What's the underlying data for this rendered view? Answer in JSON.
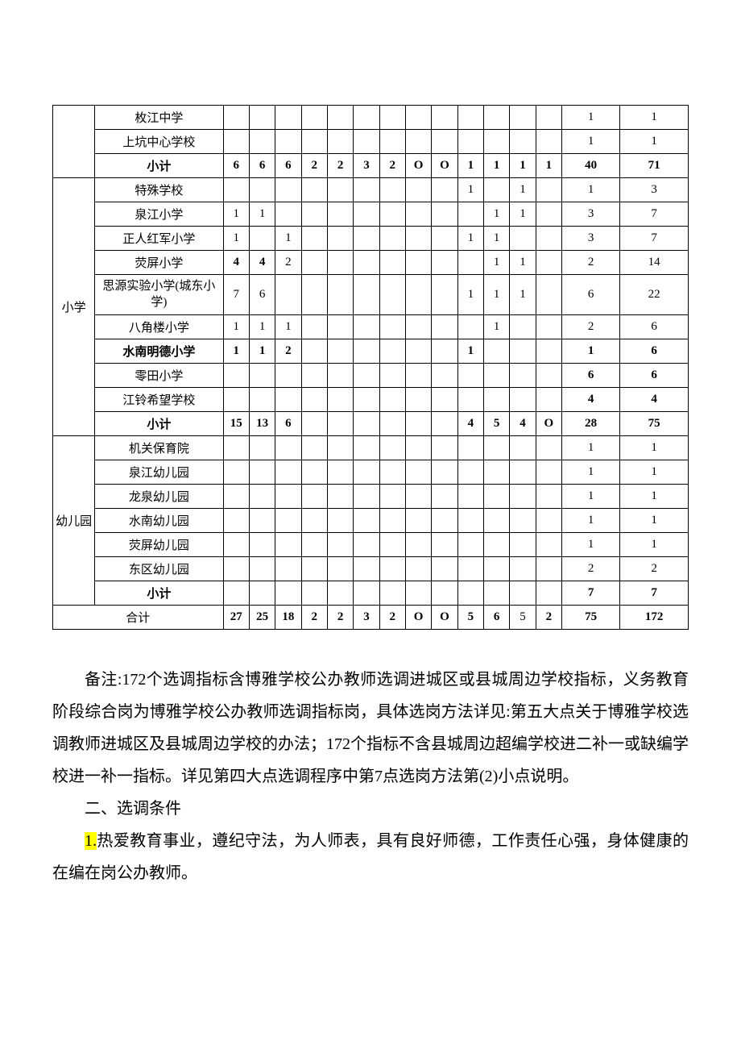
{
  "colors": {
    "background": "#ffffff",
    "text": "#000000",
    "border": "#000000",
    "highlight": "#ffff00"
  },
  "typography": {
    "table_fontsize": 15,
    "body_fontsize": 20,
    "font_family": "SimSun"
  },
  "table": {
    "type": "table",
    "column_widths": {
      "category": 42,
      "school": 128,
      "num": 26,
      "total1": 58,
      "total2": 68
    },
    "top_group": {
      "rows": [
        {
          "school": "枚江中学",
          "c": [
            "",
            "",
            "",
            "",
            "",
            "",
            "",
            "",
            "",
            "",
            "",
            "",
            "",
            "1",
            "1"
          ],
          "bold": false
        },
        {
          "school": "上坑中心学校",
          "c": [
            "",
            "",
            "",
            "",
            "",
            "",
            "",
            "",
            "",
            "",
            "",
            "",
            "",
            "1",
            "1"
          ],
          "bold": false
        },
        {
          "school": "小计",
          "c": [
            "6",
            "6",
            "6",
            "2",
            "2",
            "3",
            "2",
            "O",
            "O",
            "1",
            "1",
            "1",
            "1",
            "40",
            "71"
          ],
          "bold": true
        }
      ]
    },
    "primary": {
      "label": "小学",
      "rows": [
        {
          "school": "特殊学校",
          "c": [
            "",
            "",
            "",
            "",
            "",
            "",
            "",
            "",
            "",
            "1",
            "",
            "1",
            "",
            "1",
            "3"
          ],
          "bold": false
        },
        {
          "school": "泉江小学",
          "c": [
            "1",
            "1",
            "",
            "",
            "",
            "",
            "",
            "",
            "",
            "",
            "1",
            "1",
            "",
            "3",
            "7"
          ],
          "bold": false
        },
        {
          "school": "正人红军小学",
          "c": [
            "1",
            "",
            "1",
            "",
            "",
            "",
            "",
            "",
            "",
            "1",
            "1",
            "",
            "",
            "3",
            "7"
          ],
          "bold": false
        },
        {
          "school": "荧屏小学",
          "c": [
            "4",
            "4",
            "2",
            "",
            "",
            "",
            "",
            "",
            "",
            "",
            "1",
            "1",
            "",
            "2",
            "14"
          ],
          "bold": false,
          "bold_cols": [
            0,
            1
          ]
        },
        {
          "school": "思源实验小学(城东小学)",
          "c": [
            "7",
            "6",
            "",
            "",
            "",
            "",
            "",
            "",
            "",
            "1",
            "1",
            "1",
            "",
            "6",
            "22"
          ],
          "bold": false,
          "multiline": true
        },
        {
          "school": "八角楼小学",
          "c": [
            "1",
            "1",
            "1",
            "",
            "",
            "",
            "",
            "",
            "",
            "",
            "1",
            "",
            "",
            "2",
            "6"
          ],
          "bold": false
        },
        {
          "school": "水南明德小学",
          "c": [
            "1",
            "1",
            "2",
            "",
            "",
            "",
            "",
            "",
            "",
            "1",
            "",
            "",
            "",
            "1",
            "6"
          ],
          "bold": true
        },
        {
          "school": "零田小学",
          "c": [
            "",
            "",
            "",
            "",
            "",
            "",
            "",
            "",
            "",
            "",
            "",
            "",
            "",
            "6",
            "6"
          ],
          "bold": false,
          "bold_cols": [
            13,
            14
          ]
        },
        {
          "school": "江铃希望学校",
          "c": [
            "",
            "",
            "",
            "",
            "",
            "",
            "",
            "",
            "",
            "",
            "",
            "",
            "",
            "4",
            "4"
          ],
          "bold": false,
          "bold_cols": [
            13,
            14
          ]
        },
        {
          "school": "小计",
          "c": [
            "15",
            "13",
            "6",
            "",
            "",
            "",
            "",
            "",
            "",
            "4",
            "5",
            "4",
            "O",
            "28",
            "75"
          ],
          "bold": true
        }
      ]
    },
    "kindergarten": {
      "label": "幼儿园",
      "rows": [
        {
          "school": "机关保育院",
          "c": [
            "",
            "",
            "",
            "",
            "",
            "",
            "",
            "",
            "",
            "",
            "",
            "",
            "",
            "1",
            "1"
          ],
          "bold": false
        },
        {
          "school": "泉江幼儿园",
          "c": [
            "",
            "",
            "",
            "",
            "",
            "",
            "",
            "",
            "",
            "",
            "",
            "",
            "",
            "1",
            "1"
          ],
          "bold": false
        },
        {
          "school": "龙泉幼儿园",
          "c": [
            "",
            "",
            "",
            "",
            "",
            "",
            "",
            "",
            "",
            "",
            "",
            "",
            "",
            "1",
            "1"
          ],
          "bold": false
        },
        {
          "school": "水南幼儿园",
          "c": [
            "",
            "",
            "",
            "",
            "",
            "",
            "",
            "",
            "",
            "",
            "",
            "",
            "",
            "1",
            "1"
          ],
          "bold": false
        },
        {
          "school": "荧屏幼儿园",
          "c": [
            "",
            "",
            "",
            "",
            "",
            "",
            "",
            "",
            "",
            "",
            "",
            "",
            "",
            "1",
            "1"
          ],
          "bold": false
        },
        {
          "school": "东区幼儿园",
          "c": [
            "",
            "",
            "",
            "",
            "",
            "",
            "",
            "",
            "",
            "",
            "",
            "",
            "",
            "2",
            "2"
          ],
          "bold": false
        },
        {
          "school": "小计",
          "c": [
            "",
            "",
            "",
            "",
            "",
            "",
            "",
            "",
            "",
            "",
            "",
            "",
            "",
            "7",
            "7"
          ],
          "bold": true
        }
      ]
    },
    "total_row": {
      "school": "合计",
      "c": [
        "27",
        "25",
        "18",
        "2",
        "2",
        "3",
        "2",
        "O",
        "O",
        "5",
        "6",
        "5",
        "2",
        "75",
        "172"
      ],
      "bold": true,
      "normal_cols": [
        11
      ]
    }
  },
  "paragraphs": {
    "p1": "备注:172个选调指标含博雅学校公办教师选调进城区或县城周边学校指标，义务教育阶段综合岗为博雅学校公办教师选调指标岗，具体选岗方法详见:第五大点关于博雅学校选调教师进城区及县城周边学校的办法；172个指标不含县城周边超编学校进二补一或缺编学校进一补一指标。详见第四大点选调程序中第7点选岗方法第(2)小点说明。",
    "p2": "二、选调条件",
    "p3_highlight": "1.",
    "p3_rest": "热爱教育事业，遵纪守法，为人师表，具有良好师德，工作责任心强，身体健康的在编在岗公办教师。"
  }
}
